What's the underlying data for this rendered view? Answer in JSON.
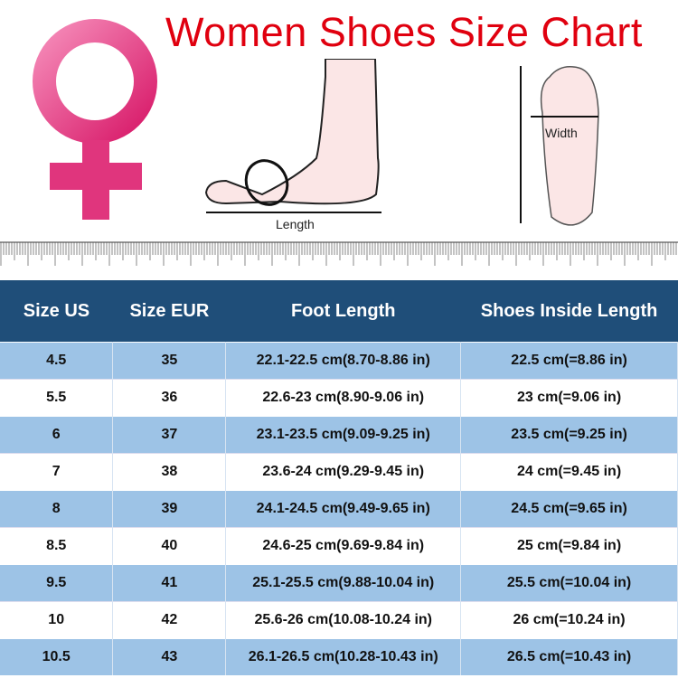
{
  "title": "Women Shoes Size Chart",
  "illustrations": {
    "length_label": "Length",
    "width_label": "Width",
    "symbol": "venus-symbol",
    "symbol_color": "#e8337a"
  },
  "colors": {
    "title": "#e0000f",
    "header_bg": "#1f4e79",
    "row_alt": "#9dc3e6"
  },
  "table": {
    "headers": [
      "Size US",
      "Size EUR",
      "Foot Length",
      "Shoes Inside Length"
    ],
    "rows": [
      [
        "4.5",
        "35",
        "22.1-22.5 cm(8.70-8.86 in)",
        "22.5 cm(=8.86 in)"
      ],
      [
        "5.5",
        "36",
        "22.6-23 cm(8.90-9.06 in)",
        "23 cm(=9.06 in)"
      ],
      [
        "6",
        "37",
        "23.1-23.5 cm(9.09-9.25 in)",
        "23.5 cm(=9.25 in)"
      ],
      [
        "7",
        "38",
        "23.6-24 cm(9.29-9.45 in)",
        "24 cm(=9.45 in)"
      ],
      [
        "8",
        "39",
        "24.1-24.5 cm(9.49-9.65 in)",
        "24.5 cm(=9.65 in)"
      ],
      [
        "8.5",
        "40",
        "24.6-25 cm(9.69-9.84 in)",
        "25 cm(=9.84 in)"
      ],
      [
        "9.5",
        "41",
        "25.1-25.5 cm(9.88-10.04 in)",
        "25.5 cm(=10.04 in)"
      ],
      [
        "10",
        "42",
        "25.6-26 cm(10.08-10.24 in)",
        "26 cm(=10.24 in)"
      ],
      [
        "10.5",
        "43",
        "26.1-26.5 cm(10.28-10.43 in)",
        "26.5 cm(=10.43 in)"
      ]
    ]
  }
}
